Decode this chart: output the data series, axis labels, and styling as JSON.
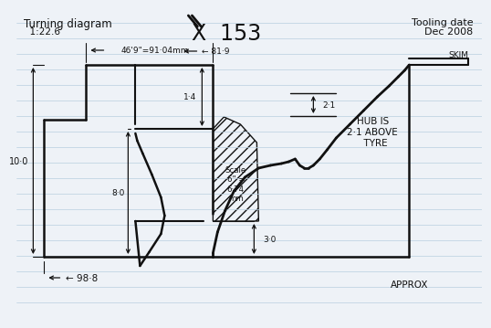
{
  "bg_color": "#eef2f7",
  "line_color": "#111111",
  "title_left1": "Turning diagram",
  "title_left2": "  1:22.6",
  "title_right1": "Tooling date",
  "title_right2": "Dec 2008",
  "casting": "X  153",
  "dim_top_label": "46'9\"=91·04mm",
  "dim_81": "← 81·9",
  "dim_14": "1·4",
  "dim_21": "2·1",
  "dim_100": "10·0",
  "dim_80": "8·0",
  "dim_30": "3·0",
  "dim_988": "← 98·8",
  "scale_text": "Scale\n6\" =\n6·74\nmm",
  "hub_text": "HUB IS\n2·1 ABOVE\n  TYRE",
  "skim_text": "SKIM",
  "approx_text": "APPROX"
}
